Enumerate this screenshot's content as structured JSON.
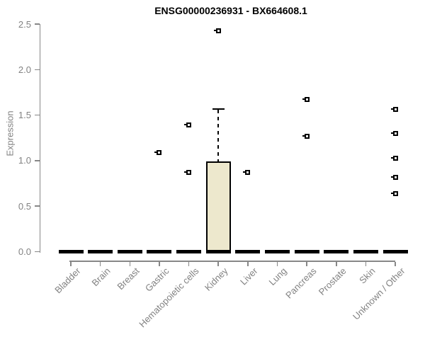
{
  "chart_data": {
    "type": "boxplot",
    "title": "ENSG00000236931 - BX664608.1",
    "ylabel": "Expression",
    "xlabel": "",
    "ylim": [
      0.0,
      2.5
    ],
    "yticks": [
      0.0,
      0.5,
      1.0,
      1.5,
      2.0,
      2.5
    ],
    "grid": false,
    "legend": null,
    "categories": [
      "Bladder",
      "Brain",
      "Breast",
      "Gastric",
      "Hematopoietic cells",
      "Kidney",
      "Liver",
      "Lung",
      "Pancreas",
      "Prostate",
      "Skin",
      "Unknown / Other"
    ],
    "boxes": [
      {
        "label": "Bladder",
        "q1": 0,
        "median": 0,
        "q3": 0,
        "whisker_low": 0,
        "whisker_high": 0,
        "outliers": []
      },
      {
        "label": "Brain",
        "q1": 0,
        "median": 0,
        "q3": 0,
        "whisker_low": 0,
        "whisker_high": 0,
        "outliers": []
      },
      {
        "label": "Breast",
        "q1": 0,
        "median": 0,
        "q3": 0,
        "whisker_low": 0,
        "whisker_high": 0,
        "outliers": []
      },
      {
        "label": "Gastric",
        "q1": 0,
        "median": 0,
        "q3": 0,
        "whisker_low": 0,
        "whisker_high": 0,
        "outliers": [
          1.09
        ]
      },
      {
        "label": "Hematopoietic cells",
        "q1": 0,
        "median": 0,
        "q3": 0,
        "whisker_low": 0,
        "whisker_high": 0,
        "outliers": [
          1.39,
          0.87
        ]
      },
      {
        "label": "Kidney",
        "q1": 0,
        "median": 0,
        "q3": 0.98,
        "whisker_low": 0,
        "whisker_high": 1.57,
        "outliers": [
          2.43
        ]
      },
      {
        "label": "Liver",
        "q1": 0,
        "median": 0,
        "q3": 0,
        "whisker_low": 0,
        "whisker_high": 0,
        "outliers": [
          0.87
        ]
      },
      {
        "label": "Lung",
        "q1": 0,
        "median": 0,
        "q3": 0,
        "whisker_low": 0,
        "whisker_high": 0,
        "outliers": []
      },
      {
        "label": "Pancreas",
        "q1": 0,
        "median": 0,
        "q3": 0,
        "whisker_low": 0,
        "whisker_high": 0,
        "outliers": [
          1.67,
          1.27
        ]
      },
      {
        "label": "Prostate",
        "q1": 0,
        "median": 0,
        "q3": 0,
        "whisker_low": 0,
        "whisker_high": 0,
        "outliers": []
      },
      {
        "label": "Skin",
        "q1": 0,
        "median": 0,
        "q3": 0,
        "whisker_low": 0,
        "whisker_high": 0,
        "outliers": []
      },
      {
        "label": "Unknown / Other",
        "q1": 0,
        "median": 0,
        "q3": 0,
        "whisker_low": 0,
        "whisker_high": 0,
        "outliers": [
          1.56,
          1.3,
          1.03,
          0.82,
          0.64
        ]
      }
    ],
    "colors": {
      "box_fill": "#EDE8CD",
      "box_border": "#000000",
      "median": "#000000",
      "outlier": "#000000",
      "axis": "#878787",
      "tick_label": "#828282",
      "title": "#000000",
      "background": "#FFFFFF"
    }
  }
}
